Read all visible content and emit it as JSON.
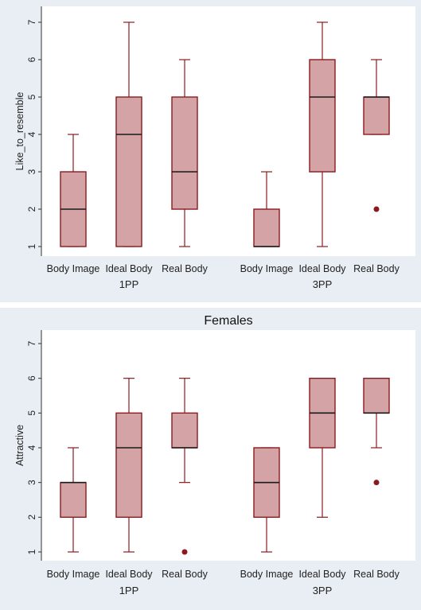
{
  "chart_data": [
    {
      "type": "box",
      "title": "",
      "ylabel": "Like_to_resemble",
      "ylim": [
        1,
        7
      ],
      "yticks": [
        "1",
        "2",
        "3",
        "4",
        "5",
        "6",
        "7"
      ],
      "groups": [
        {
          "label": "1PP",
          "boxes": [
            {
              "category": "Body Image",
              "whisker_low": 1,
              "q1": 1,
              "median": 2,
              "q3": 3,
              "whisker_high": 4,
              "outliers": []
            },
            {
              "category": "Ideal Body",
              "whisker_low": 1,
              "q1": 1,
              "median": 4,
              "q3": 5,
              "whisker_high": 7,
              "outliers": []
            },
            {
              "category": "Real Body",
              "whisker_low": 1,
              "q1": 2,
              "median": 3,
              "q3": 5,
              "whisker_high": 6,
              "outliers": []
            }
          ]
        },
        {
          "label": "3PP",
          "boxes": [
            {
              "category": "Body Image",
              "whisker_low": 1,
              "q1": 1,
              "median": 1,
              "q3": 2,
              "whisker_high": 3,
              "outliers": []
            },
            {
              "category": "Ideal Body",
              "whisker_low": 1,
              "q1": 3,
              "median": 5,
              "q3": 6,
              "whisker_high": 7,
              "outliers": []
            },
            {
              "category": "Real Body",
              "whisker_low": 4,
              "q1": 4,
              "median": 5,
              "q3": 5,
              "whisker_high": 6,
              "outliers": [
                2
              ]
            }
          ]
        }
      ]
    },
    {
      "type": "box",
      "title": "Females",
      "ylabel": "Attractive",
      "ylim": [
        1,
        7
      ],
      "yticks": [
        "1",
        "2",
        "3",
        "4",
        "5",
        "6",
        "7"
      ],
      "groups": [
        {
          "label": "1PP",
          "boxes": [
            {
              "category": "Body Image",
              "whisker_low": 1,
              "q1": 2,
              "median": 3,
              "q3": 3,
              "whisker_high": 4,
              "outliers": []
            },
            {
              "category": "Ideal Body",
              "whisker_low": 1,
              "q1": 2,
              "median": 4,
              "q3": 5,
              "whisker_high": 6,
              "outliers": []
            },
            {
              "category": "Real Body",
              "whisker_low": 3,
              "q1": 4,
              "median": 4,
              "q3": 5,
              "whisker_high": 6,
              "outliers": [
                1
              ]
            }
          ]
        },
        {
          "label": "3PP",
          "boxes": [
            {
              "category": "Body Image",
              "whisker_low": 1,
              "q1": 2,
              "median": 3,
              "q3": 4,
              "whisker_high": 4,
              "outliers": []
            },
            {
              "category": "Ideal Body",
              "whisker_low": 2,
              "q1": 4,
              "median": 5,
              "q3": 6,
              "whisker_high": 6,
              "outliers": []
            },
            {
              "category": "Real Body",
              "whisker_low": 4,
              "q1": 5,
              "median": 5,
              "q3": 6,
              "whisker_high": 6,
              "outliers": [
                3
              ]
            }
          ]
        }
      ]
    }
  ],
  "colors": {
    "panel_background": "#e8eef3",
    "plot_background": "#ffffff",
    "box_fill": "#d4a3a6",
    "box_stroke": "#8b1a1e",
    "median_line": "#1a1a1a",
    "outlier": "#8b1a1e"
  }
}
